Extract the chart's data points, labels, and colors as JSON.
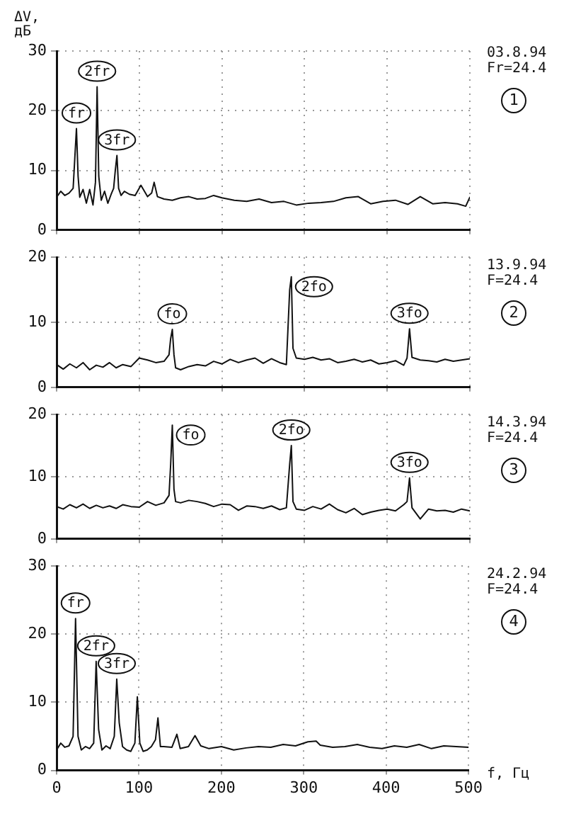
{
  "chart_data": [
    {
      "type": "line",
      "ylabel": "ΔV, дБ",
      "xlim": [
        0,
        500
      ],
      "xticks": [
        0,
        100,
        200,
        300,
        400,
        500
      ],
      "ylim": [
        0,
        30
      ],
      "yticks": [
        0,
        10,
        20,
        30
      ],
      "grid": true,
      "legend": false,
      "marker": "none",
      "tick_labels": "y",
      "x": [
        0,
        5,
        10,
        15,
        20,
        22,
        24,
        26,
        28,
        32,
        36,
        40,
        44,
        47,
        49,
        51,
        54,
        58,
        62,
        66,
        69,
        71,
        73,
        75,
        78,
        82,
        88,
        95,
        102,
        110,
        115,
        118,
        122,
        130,
        140,
        150,
        160,
        170,
        180,
        190,
        200,
        215,
        230,
        245,
        260,
        275,
        290,
        305,
        320,
        335,
        350,
        365,
        380,
        395,
        410,
        425,
        440,
        455,
        470,
        485,
        495,
        500
      ],
      "series": [
        {
          "color": "#111111",
          "values": [
            5.5,
            6.5,
            5.8,
            6.2,
            7,
            12,
            17,
            9,
            5.5,
            6.8,
            4.5,
            6.8,
            4.2,
            8,
            24,
            9,
            5,
            6.5,
            4.5,
            6,
            7,
            10,
            12.5,
            7,
            5.8,
            6.5,
            6,
            5.8,
            7.5,
            5.6,
            6.2,
            8,
            5.6,
            5.2,
            5,
            5.4,
            5.6,
            5.2,
            5.3,
            5.8,
            5.4,
            5,
            4.8,
            5.2,
            4.6,
            4.8,
            4.2,
            4.5,
            4.6,
            4.8,
            5.4,
            5.6,
            4.4,
            4.8,
            5,
            4.3,
            5.6,
            4.4,
            4.6,
            4.4,
            4,
            5.5
          ]
        }
      ],
      "annotations": [
        "03.8.94",
        "Fr=24.4",
        "1",
        {
          "text": "fr",
          "x": 24,
          "y": 17
        },
        {
          "text": "2fr",
          "x": 49,
          "y": 24
        },
        {
          "text": "3fr",
          "x": 73,
          "y": 12.5
        }
      ]
    },
    {
      "type": "line",
      "xlim": [
        0,
        500
      ],
      "xticks": [
        0,
        100,
        200,
        300,
        400,
        500
      ],
      "ylim": [
        0,
        20
      ],
      "yticks": [
        0,
        10,
        20
      ],
      "grid": true,
      "legend": false,
      "marker": "none",
      "tick_labels": "y",
      "x": [
        0,
        8,
        16,
        24,
        32,
        40,
        48,
        56,
        64,
        72,
        80,
        90,
        100,
        110,
        120,
        130,
        136,
        138,
        140,
        142,
        144,
        150,
        160,
        170,
        180,
        190,
        200,
        210,
        220,
        230,
        240,
        250,
        260,
        270,
        278,
        282,
        284,
        286,
        290,
        300,
        310,
        320,
        330,
        340,
        350,
        360,
        370,
        380,
        390,
        400,
        410,
        420,
        424,
        427,
        430,
        440,
        450,
        460,
        470,
        480,
        490,
        500
      ],
      "series": [
        {
          "color": "#111111",
          "values": [
            3.5,
            2.8,
            3.6,
            3,
            3.8,
            2.7,
            3.4,
            3.1,
            3.8,
            3,
            3.5,
            3.2,
            4.5,
            4.2,
            3.8,
            4,
            5,
            7.5,
            8.9,
            5,
            3,
            2.7,
            3.2,
            3.5,
            3.3,
            4,
            3.6,
            4.3,
            3.8,
            4.2,
            4.5,
            3.7,
            4.4,
            3.8,
            3.5,
            15,
            17,
            6,
            4.5,
            4.3,
            4.6,
            4.2,
            4.4,
            3.8,
            4,
            4.3,
            3.9,
            4.2,
            3.6,
            3.8,
            4.1,
            3.4,
            4.5,
            9,
            4.6,
            4.2,
            4.1,
            3.9,
            4.3,
            4,
            4.2,
            4.4
          ]
        }
      ],
      "annotations": [
        "13.9.94",
        "F=24.4",
        "2",
        {
          "text": "fo",
          "x": 140,
          "y": 8.9
        },
        {
          "text": "2fo",
          "x": 284,
          "y": 17
        },
        {
          "text": "3fo",
          "x": 427,
          "y": 9
        }
      ]
    },
    {
      "type": "line",
      "xlim": [
        0,
        500
      ],
      "xticks": [
        0,
        100,
        200,
        300,
        400,
        500
      ],
      "ylim": [
        0,
        20
      ],
      "yticks": [
        0,
        10,
        20
      ],
      "grid": true,
      "legend": false,
      "marker": "none",
      "tick_labels": "y",
      "x": [
        0,
        8,
        16,
        24,
        32,
        40,
        48,
        56,
        64,
        72,
        80,
        90,
        100,
        110,
        120,
        130,
        136,
        138,
        140,
        142,
        144,
        150,
        160,
        170,
        180,
        190,
        200,
        210,
        220,
        230,
        240,
        250,
        260,
        270,
        278,
        282,
        284,
        286,
        290,
        300,
        310,
        320,
        330,
        340,
        350,
        360,
        370,
        380,
        390,
        400,
        410,
        420,
        424,
        427,
        430,
        440,
        450,
        460,
        470,
        480,
        490,
        500
      ],
      "series": [
        {
          "color": "#111111",
          "values": [
            5.2,
            4.8,
            5.5,
            5,
            5.6,
            4.9,
            5.4,
            5,
            5.3,
            4.9,
            5.5,
            5.2,
            5.1,
            6,
            5.4,
            5.8,
            7,
            12,
            18.3,
            8,
            6,
            5.8,
            6.2,
            6,
            5.7,
            5.2,
            5.6,
            5.5,
            4.6,
            5.3,
            5.2,
            4.9,
            5.3,
            4.7,
            5,
            12,
            15,
            6,
            4.8,
            4.6,
            5.2,
            4.8,
            5.6,
            4.7,
            4.2,
            4.9,
            3.9,
            4.3,
            4.6,
            4.8,
            4.5,
            5.5,
            6,
            9.8,
            5,
            3.2,
            4.8,
            4.5,
            4.6,
            4.3,
            4.8,
            4.5
          ]
        }
      ],
      "annotations": [
        "14.3.94",
        "F=24.4",
        "3",
        {
          "text": "fo",
          "x": 140,
          "y": 18.3
        },
        {
          "text": "2fo",
          "x": 284,
          "y": 15
        },
        {
          "text": "3fo",
          "x": 427,
          "y": 9.8
        }
      ]
    },
    {
      "type": "line",
      "xlabel": "f, Гц",
      "xlim": [
        0,
        500
      ],
      "xticks": [
        0,
        100,
        200,
        300,
        400,
        500
      ],
      "ylim": [
        0,
        30
      ],
      "yticks": [
        0,
        10,
        20,
        30
      ],
      "grid": true,
      "legend": false,
      "marker": "none",
      "x": [
        0,
        5,
        10,
        15,
        20,
        23,
        26,
        30,
        35,
        40,
        45,
        48,
        51,
        55,
        60,
        65,
        70,
        73,
        76,
        80,
        85,
        90,
        95,
        98,
        101,
        105,
        110,
        115,
        120,
        123,
        126,
        130,
        140,
        146,
        150,
        160,
        168,
        175,
        185,
        200,
        215,
        230,
        245,
        260,
        275,
        290,
        305,
        315,
        320,
        335,
        350,
        365,
        380,
        395,
        410,
        425,
        440,
        455,
        470,
        485,
        500
      ],
      "series": [
        {
          "color": "#111111",
          "values": [
            3,
            4,
            3.4,
            3.6,
            5,
            22.3,
            5,
            3,
            3.5,
            3.2,
            4,
            16,
            6,
            3,
            3.6,
            3.2,
            5,
            13.4,
            7,
            3.5,
            3,
            2.8,
            4,
            10.8,
            4,
            2.8,
            3,
            3.5,
            4.5,
            7.7,
            3.5,
            3.5,
            3.4,
            5.3,
            3.2,
            3.5,
            5.1,
            3.6,
            3.2,
            3.5,
            3,
            3.3,
            3.5,
            3.4,
            3.8,
            3.6,
            4.2,
            4.3,
            3.7,
            3.4,
            3.5,
            3.8,
            3.4,
            3.2,
            3.6,
            3.4,
            3.8,
            3.2,
            3.6,
            3.5,
            3.4
          ]
        }
      ],
      "annotations": [
        "24.2.94",
        "F=24.4",
        "4",
        {
          "text": "fr",
          "x": 23,
          "y": 22.3
        },
        {
          "text": "2fr",
          "x": 48,
          "y": 16
        },
        {
          "text": "3fr",
          "x": 73,
          "y": 13.4
        }
      ]
    }
  ]
}
